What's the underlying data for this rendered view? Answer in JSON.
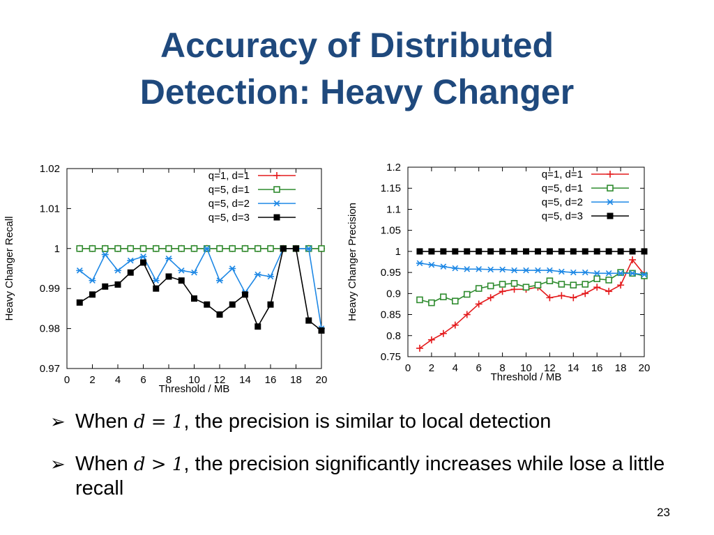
{
  "slide": {
    "title_line1": "Accuracy of Distributed",
    "title_line2": "Detection: Heavy Changer",
    "bullets": [
      {
        "marker": "➢",
        "pre": "When ",
        "math": "d = 1",
        "post": ", the precision is similar to local detection"
      },
      {
        "marker": "➢",
        "pre": "When ",
        "math": "d > 1",
        "post": ", the precision significantly increases while lose a little recall"
      }
    ],
    "page_number": "23",
    "title_color": "#1F497D"
  },
  "chart_data": [
    {
      "type": "line",
      "xlabel": "Threshold / MB",
      "ylabel": "Heavy Changer Recall",
      "xlim": [
        0,
        20
      ],
      "ylim": [
        0.97,
        1.02
      ],
      "xticks": [
        "0",
        "2",
        "4",
        "6",
        "8",
        "10",
        "12",
        "14",
        "16",
        "18",
        "20"
      ],
      "yticks": [
        "0.97",
        "0.98",
        "0.99",
        "1",
        "1.01",
        "1.02"
      ],
      "legend_position": "top-right",
      "grid": false,
      "x": [
        1,
        2,
        3,
        4,
        5,
        6,
        7,
        8,
        9,
        10,
        11,
        12,
        13,
        14,
        15,
        16,
        17,
        18,
        19,
        20
      ],
      "series": [
        {
          "name": "q=1, d=1",
          "color": "#E41A1C",
          "marker": "plus",
          "values": [
            1,
            1,
            1,
            1,
            1,
            1,
            1,
            1,
            1,
            1,
            1,
            1,
            1,
            1,
            1,
            1,
            1,
            1,
            1,
            1
          ]
        },
        {
          "name": "q=5, d=1",
          "color": "#2E8B2E",
          "marker": "square-open",
          "values": [
            1,
            1,
            1,
            1,
            1,
            1,
            1,
            1,
            1,
            1,
            1,
            1,
            1,
            1,
            1,
            1,
            1,
            1,
            1,
            1
          ]
        },
        {
          "name": "q=5, d=2",
          "color": "#1E88E5",
          "marker": "star",
          "values": [
            0.9945,
            0.992,
            0.9985,
            0.9945,
            0.997,
            0.998,
            0.992,
            0.9975,
            0.9945,
            0.994,
            1,
            0.992,
            0.995,
            0.989,
            0.9935,
            0.993,
            1,
            1,
            1,
            0.98
          ]
        },
        {
          "name": "q=5, d=3",
          "color": "#000000",
          "marker": "square-filled",
          "values": [
            0.9865,
            0.9885,
            0.9905,
            0.991,
            0.994,
            0.9965,
            0.99,
            0.993,
            0.992,
            0.9875,
            0.986,
            0.9835,
            0.986,
            0.9885,
            0.9805,
            0.986,
            1,
            1,
            0.982,
            0.9795
          ]
        }
      ]
    },
    {
      "type": "line",
      "xlabel": "Threshold / MB",
      "ylabel": "Heavy Changer Precision",
      "xlim": [
        0,
        20
      ],
      "ylim": [
        0.75,
        1.2
      ],
      "xticks": [
        "0",
        "2",
        "4",
        "6",
        "8",
        "10",
        "12",
        "14",
        "16",
        "18",
        "20"
      ],
      "yticks": [
        "0.75",
        "0.8",
        "0.85",
        "0.9",
        "0.95",
        "1",
        "1.05",
        "1.1",
        "1.15",
        "1.2"
      ],
      "legend_position": "top-right",
      "grid": false,
      "x": [
        1,
        2,
        3,
        4,
        5,
        6,
        7,
        8,
        9,
        10,
        11,
        12,
        13,
        14,
        15,
        16,
        17,
        18,
        19,
        20
      ],
      "series": [
        {
          "name": "q=1, d=1",
          "color": "#E41A1C",
          "marker": "plus",
          "values": [
            0.77,
            0.79,
            0.805,
            0.825,
            0.85,
            0.875,
            0.89,
            0.905,
            0.91,
            0.91,
            0.915,
            0.89,
            0.895,
            0.89,
            0.9,
            0.915,
            0.905,
            0.92,
            0.98,
            0.945
          ]
        },
        {
          "name": "q=5, d=1",
          "color": "#2E8B2E",
          "marker": "square-open",
          "values": [
            0.885,
            0.878,
            0.892,
            0.882,
            0.898,
            0.912,
            0.918,
            0.922,
            0.924,
            0.915,
            0.92,
            0.93,
            0.922,
            0.92,
            0.922,
            0.935,
            0.932,
            0.95,
            0.948,
            0.942
          ]
        },
        {
          "name": "q=5, d=2",
          "color": "#1E88E5",
          "marker": "star",
          "values": [
            0.972,
            0.968,
            0.964,
            0.96,
            0.958,
            0.958,
            0.957,
            0.957,
            0.955,
            0.955,
            0.955,
            0.955,
            0.952,
            0.95,
            0.95,
            0.948,
            0.948,
            0.948,
            0.948,
            0.945
          ]
        },
        {
          "name": "q=5, d=3",
          "color": "#000000",
          "marker": "square-filled",
          "values": [
            1,
            1,
            1,
            1,
            1,
            1,
            1,
            1,
            1,
            1,
            1,
            1,
            1,
            1,
            1,
            1,
            1,
            1,
            1,
            1
          ]
        }
      ]
    }
  ]
}
